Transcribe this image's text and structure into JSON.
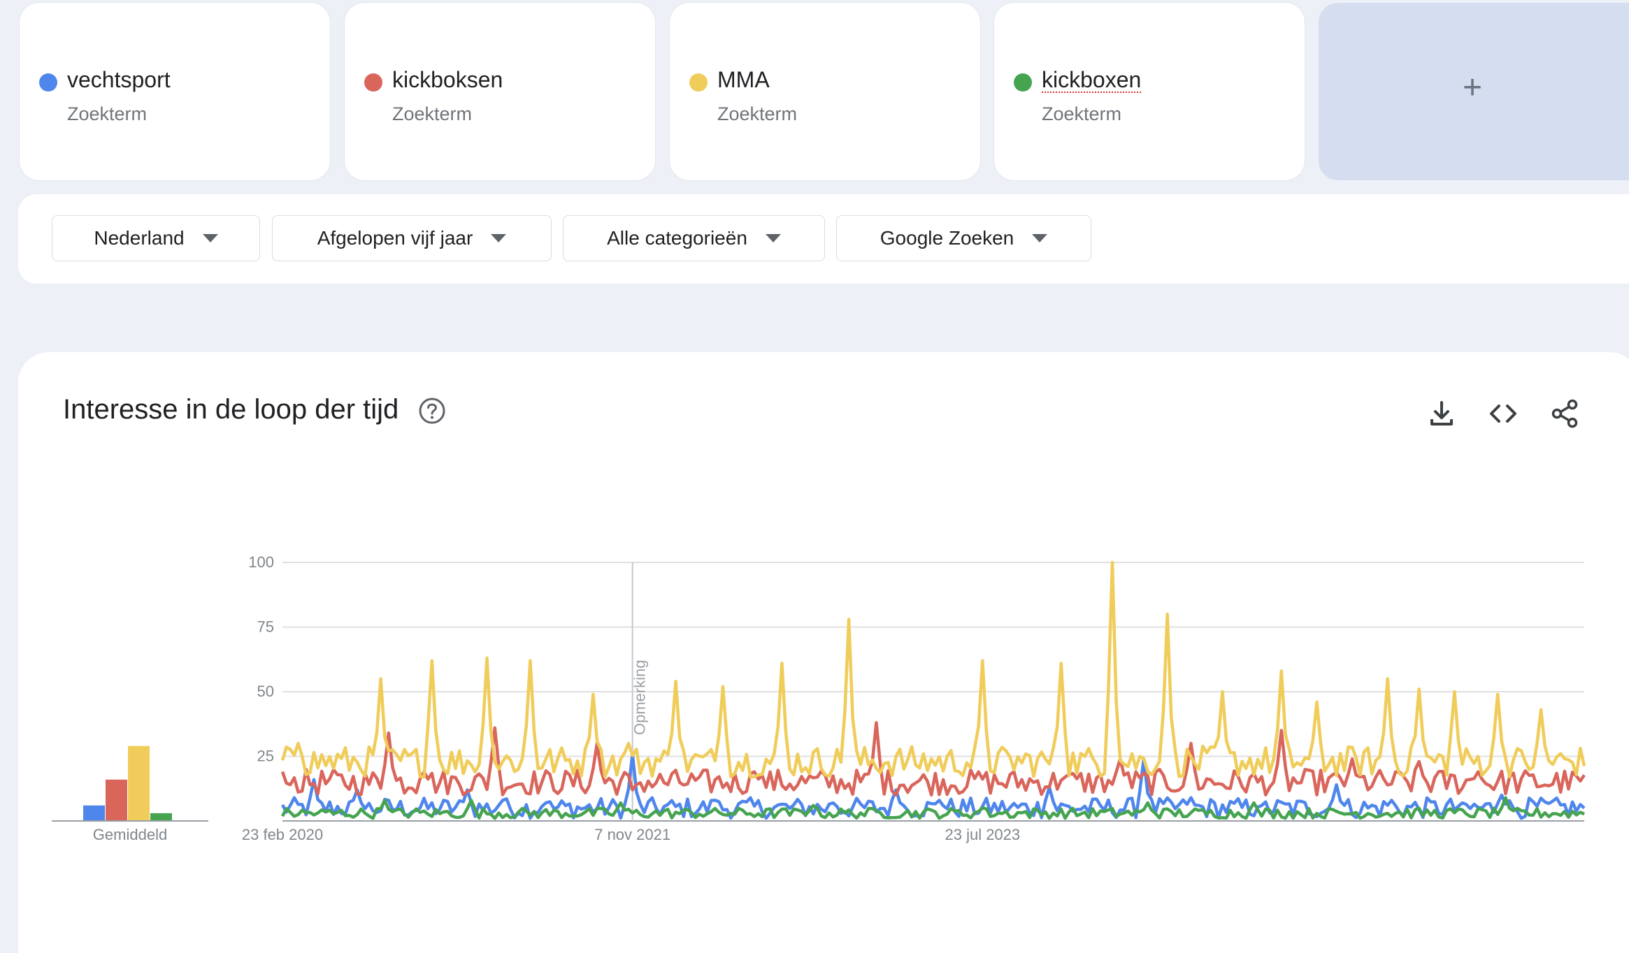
{
  "terms": [
    {
      "name": "vechtsport",
      "sub": "Zoekterm",
      "color": "#4f86ec"
    },
    {
      "name": "kickboksen",
      "sub": "Zoekterm",
      "color": "#d9655b"
    },
    {
      "name": "MMA",
      "sub": "Zoekterm",
      "color": "#f0cc5a"
    },
    {
      "name": "kickboxen",
      "sub": "Zoekterm",
      "color": "#46a451"
    }
  ],
  "add_button": {
    "icon": "plus-icon",
    "label": "+"
  },
  "filters": {
    "region": "Nederland",
    "period": "Afgelopen vijf jaar",
    "category": "Alle categorieën",
    "source": "Google Zoeken"
  },
  "section": {
    "title": "Interesse in de loop der tijd",
    "help_icon": "help-circle-icon",
    "download_icon": "download-icon",
    "embed_icon": "code-icon",
    "share_icon": "share-icon"
  },
  "chart_data": {
    "type": "line",
    "ylim": [
      0,
      100
    ],
    "y_ticks": [
      "100",
      "75",
      "50",
      "25"
    ],
    "x_tick_labels": [
      "23 feb 2020",
      "7 nov 2021",
      "23 jul 2023"
    ],
    "annotation": {
      "label": "Opmerking",
      "x_index": 89
    },
    "average_label": "Gemiddeld",
    "averages": [
      6,
      16,
      29,
      3
    ],
    "x_start_label": "23 feb 2020",
    "x_step": "1 week",
    "series": [
      {
        "name": "vechtsport",
        "color": "#4f86ec",
        "base": 5,
        "noise": 4,
        "spikes": [
          [
            8,
            16
          ],
          [
            19,
            12
          ],
          [
            47,
            12
          ],
          [
            56,
            8
          ],
          [
            67,
            7
          ],
          [
            89,
            26
          ],
          [
            110,
            8
          ],
          [
            140,
            7
          ],
          [
            156,
            12
          ],
          [
            167,
            8
          ],
          [
            195,
            13
          ],
          [
            219,
            24
          ],
          [
            231,
            9
          ],
          [
            249,
            6
          ],
          [
            268,
            14
          ],
          [
            282,
            8
          ],
          [
            300,
            7
          ],
          [
            310,
            10
          ]
        ]
      },
      {
        "name": "kickboksen",
        "color": "#d9655b",
        "base": 15,
        "noise": 5,
        "spikes": [
          [
            2,
            14
          ],
          [
            27,
            34
          ],
          [
            36,
            19
          ],
          [
            54,
            36
          ],
          [
            80,
            30
          ],
          [
            89,
            12
          ],
          [
            106,
            17
          ],
          [
            120,
            19
          ],
          [
            151,
            38
          ],
          [
            177,
            19
          ],
          [
            199,
            17
          ],
          [
            213,
            24
          ],
          [
            231,
            30
          ],
          [
            254,
            35
          ],
          [
            272,
            24
          ],
          [
            289,
            23
          ],
          [
            304,
            19
          ]
        ]
      },
      {
        "name": "MMA",
        "color": "#f0cc5a",
        "base": 23,
        "noise": 6,
        "spikes": [
          [
            4,
            30
          ],
          [
            25,
            55
          ],
          [
            38,
            62
          ],
          [
            52,
            63
          ],
          [
            63,
            62
          ],
          [
            79,
            49
          ],
          [
            88,
            30
          ],
          [
            100,
            54
          ],
          [
            112,
            52
          ],
          [
            127,
            61
          ],
          [
            144,
            78
          ],
          [
            178,
            62
          ],
          [
            198,
            61
          ],
          [
            211,
            100
          ],
          [
            225,
            80
          ],
          [
            239,
            50
          ],
          [
            254,
            58
          ],
          [
            263,
            46
          ],
          [
            281,
            55
          ],
          [
            289,
            51
          ],
          [
            298,
            50
          ],
          [
            309,
            49
          ],
          [
            320,
            43
          ]
        ]
      },
      {
        "name": "kickboxen",
        "color": "#46a451",
        "base": 3,
        "noise": 2,
        "spikes": [
          [
            26,
            8
          ],
          [
            48,
            8
          ],
          [
            86,
            7
          ],
          [
            135,
            6
          ],
          [
            178,
            5
          ],
          [
            220,
            7
          ],
          [
            247,
            7
          ],
          [
            311,
            9
          ]
        ]
      }
    ]
  }
}
